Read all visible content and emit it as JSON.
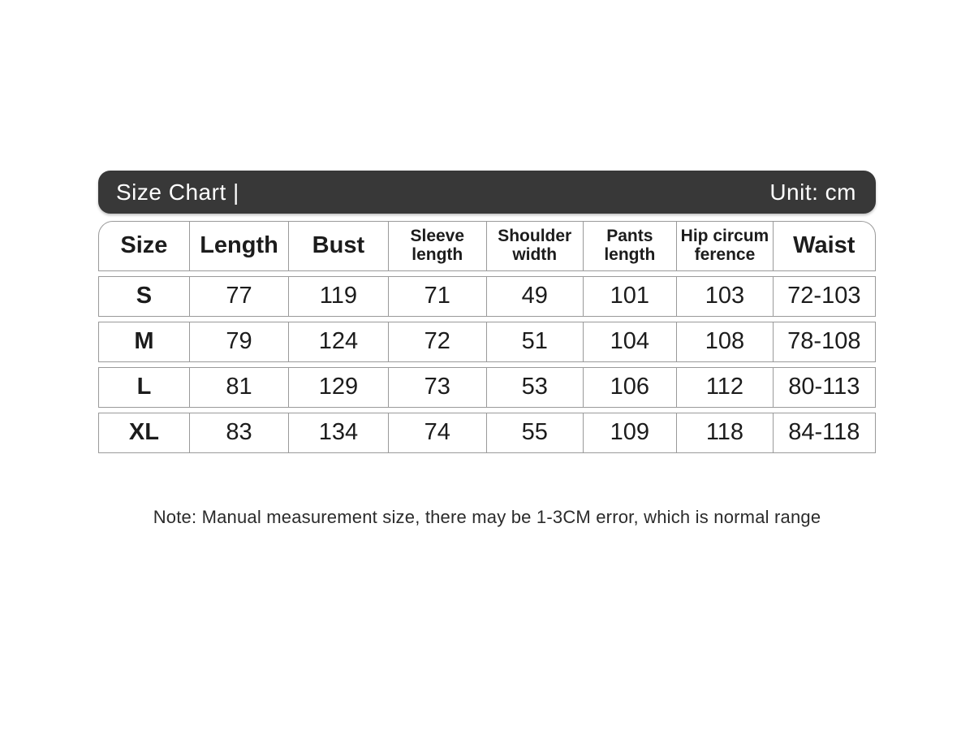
{
  "header_bar": {
    "title": "Size Chart |",
    "unit": "Unit: cm"
  },
  "chart_data": {
    "type": "table",
    "title": "Size Chart",
    "unit": "cm",
    "columns": [
      {
        "label": "Size",
        "style": "large"
      },
      {
        "label": "Length",
        "style": "large"
      },
      {
        "label": "Bust",
        "style": "large"
      },
      {
        "label": "Sleeve\nlength",
        "style": "small"
      },
      {
        "label": "Shoulder\nwidth",
        "style": "small"
      },
      {
        "label": "Pants\nlength",
        "style": "small"
      },
      {
        "label": "Hip circum\nference",
        "style": "small"
      },
      {
        "label": "Waist",
        "style": "large"
      }
    ],
    "col_widths_pct": [
      11.7,
      12.8,
      12.8,
      12.7,
      12.4,
      12.1,
      12.4,
      13.1
    ],
    "rows": [
      {
        "size": "S",
        "values": [
          "77",
          "119",
          "71",
          "49",
          "101",
          "103",
          "72-103"
        ]
      },
      {
        "size": "M",
        "values": [
          "79",
          "124",
          "72",
          "51",
          "104",
          "108",
          "78-108"
        ]
      },
      {
        "size": "L",
        "values": [
          "81",
          "129",
          "73",
          "53",
          "106",
          "112",
          "80-113"
        ]
      },
      {
        "size": "XL",
        "values": [
          "83",
          "134",
          "74",
          "55",
          "109",
          "118",
          "84-118"
        ]
      }
    ]
  },
  "note": "Note: Manual measurement size, there may be 1-3CM error, which is normal range",
  "colors": {
    "bar_bg": "#383838",
    "bar_text": "#ffffff",
    "table_border": "#9a9a9a",
    "text": "#1c1c1c",
    "page_bg": "#ffffff"
  }
}
